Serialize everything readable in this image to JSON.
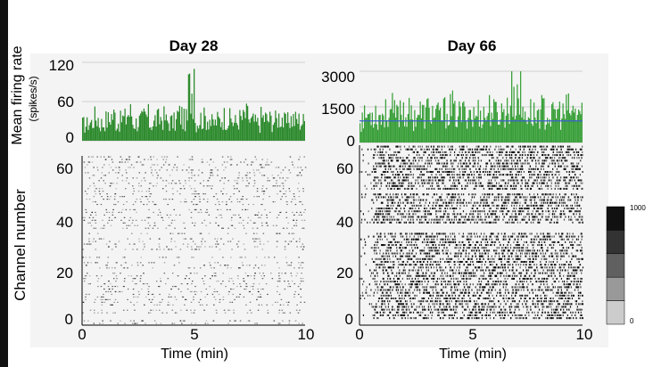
{
  "chart_data": [
    {
      "type": "bar",
      "title": "Day 28",
      "ylabel": "Mean firing rate",
      "yunit": "(spikes/s)",
      "xlabel": "Time (min)",
      "xlim": [
        0,
        10
      ],
      "ylim": [
        0,
        120
      ],
      "yticks": [
        "0",
        "60",
        "120"
      ],
      "series": [
        {
          "values": [
            35,
            40,
            50,
            38,
            45,
            55,
            42,
            48,
            60,
            40,
            44,
            52,
            38,
            46,
            50,
            42,
            40,
            56,
            45,
            110,
            42,
            48,
            50,
            38,
            44,
            52,
            46,
            40,
            48,
            55,
            42,
            38,
            50,
            46,
            44,
            52,
            40,
            48,
            45,
            42
          ]
        }
      ],
      "bar_color": "#2e8b2e",
      "peak": {
        "x": 5,
        "value": 110
      }
    },
    {
      "type": "heatmap",
      "ylabel": "Channel number",
      "xlabel": "Time (min)",
      "xlim": [
        0,
        10
      ],
      "ylim": [
        0,
        64
      ],
      "xticks": [
        "0",
        "5",
        "10"
      ],
      "yticks": [
        "0",
        "20",
        "40",
        "60"
      ],
      "density": "sparse"
    },
    {
      "type": "bar",
      "title": "Day 66",
      "xlabel": "Time (min)",
      "xlim": [
        0,
        10
      ],
      "ylim": [
        0,
        3300
      ],
      "yticks": [
        "0",
        "1500",
        "3000"
      ],
      "series": [
        {
          "values": [
            1600,
            1800,
            2000,
            1700,
            1900,
            2100,
            1800,
            2200,
            1900,
            1700,
            2000,
            1800,
            2100,
            1900,
            1700,
            2000,
            2200,
            1800,
            1900,
            2100,
            1700,
            2000,
            1800,
            2200,
            1900,
            2000,
            2100,
            2400,
            3300,
            1900,
            2000,
            1800,
            2100,
            1900,
            1700,
            2000,
            1800,
            2100,
            1900,
            2000
          ]
        }
      ],
      "bar_color": "#3aa03a",
      "mean_line": 1000,
      "mean_line_color": "#3a5fcd",
      "peak": {
        "x": 6.8,
        "value": 3300
      }
    },
    {
      "type": "heatmap",
      "xlabel": "Time (min)",
      "xlim": [
        0,
        10
      ],
      "ylim": [
        0,
        64
      ],
      "xticks": [
        "0",
        "5",
        "10"
      ],
      "yticks": [
        "0",
        "20",
        "40",
        "60"
      ],
      "density": "dense"
    }
  ],
  "colorbar": {
    "max_label": "1000",
    "min_label": "0",
    "levels": 5
  }
}
